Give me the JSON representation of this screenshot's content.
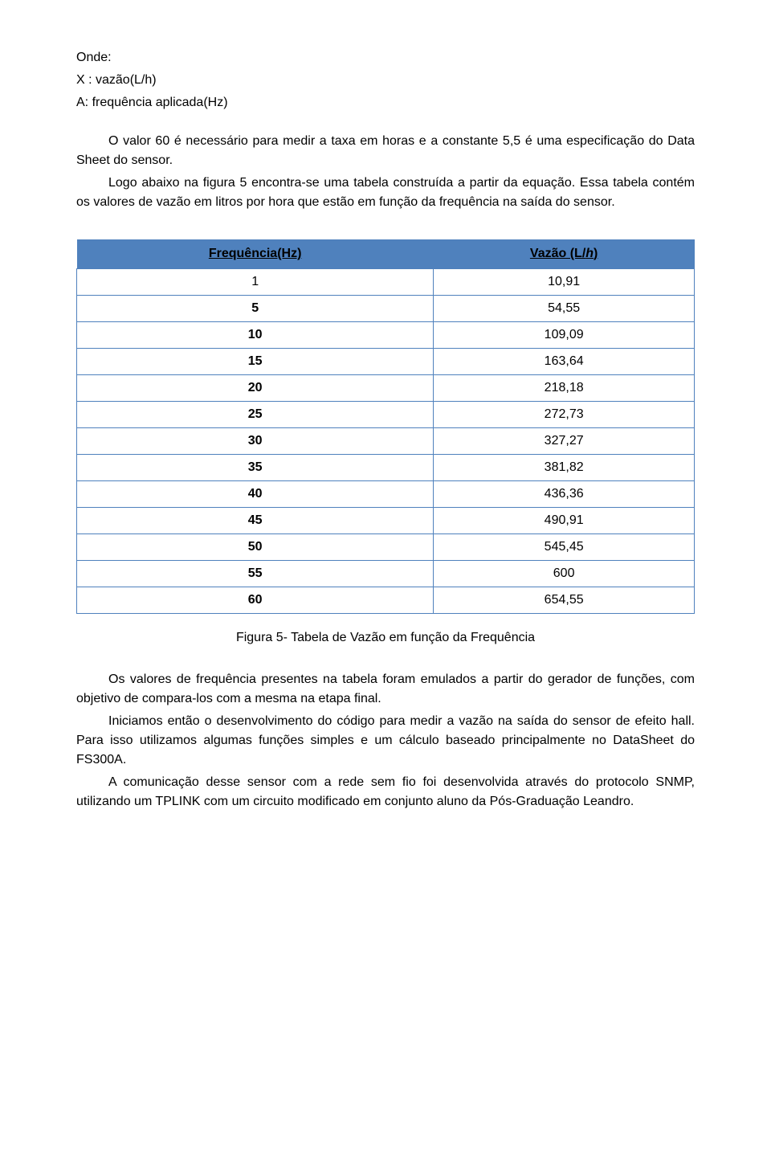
{
  "intro": {
    "line1": "Onde:",
    "line2": "X : vazão(L/h)",
    "line3": "A: frequência aplicada(Hz)"
  },
  "p1": "O valor 60 é necessário para medir a taxa em horas e a constante 5,5 é uma especificação do Data Sheet do sensor.",
  "p2": "Logo abaixo na figura 5 encontra-se uma tabela construída a partir da equação. Essa tabela contém os valores de vazão em litros por hora que estão em função da frequência na saída do sensor.",
  "table": {
    "header_freq": "Frequência(Hz)",
    "header_vazao_a": "Vazão (L/",
    "header_vazao_b": "h",
    "header_vazao_c": ")",
    "rows": [
      {
        "f": "1",
        "v": "10,91",
        "bold": false
      },
      {
        "f": "5",
        "v": "54,55",
        "bold": true
      },
      {
        "f": "10",
        "v": "109,09",
        "bold": true
      },
      {
        "f": "15",
        "v": "163,64",
        "bold": true
      },
      {
        "f": "20",
        "v": "218,18",
        "bold": true
      },
      {
        "f": "25",
        "v": "272,73",
        "bold": true
      },
      {
        "f": "30",
        "v": "327,27",
        "bold": true
      },
      {
        "f": "35",
        "v": "381,82",
        "bold": true
      },
      {
        "f": "40",
        "v": "436,36",
        "bold": true
      },
      {
        "f": "45",
        "v": "490,91",
        "bold": true
      },
      {
        "f": "50",
        "v": "545,45",
        "bold": true
      },
      {
        "f": "55",
        "v": "600",
        "bold": true
      },
      {
        "f": "60",
        "v": "654,55",
        "bold": true
      }
    ],
    "header_bg": "#4f81bd",
    "border_color": "#4f81bd"
  },
  "caption": "Figura 5- Tabela de Vazão em função da Frequência",
  "p3": "Os valores de frequência presentes na tabela foram emulados a partir do gerador de funções, com objetivo de compara-los com a mesma na etapa final.",
  "p4": "Iniciamos então o desenvolvimento do código para medir a vazão na saída do sensor de efeito hall. Para isso utilizamos algumas funções simples e um cálculo baseado principalmente no DataSheet do FS300A.",
  "p5": "A comunicação desse sensor com a rede sem fio foi desenvolvida através do protocolo SNMP, utilizando um TPLINK com um circuito modificado em conjunto aluno da Pós-Graduação Leandro."
}
